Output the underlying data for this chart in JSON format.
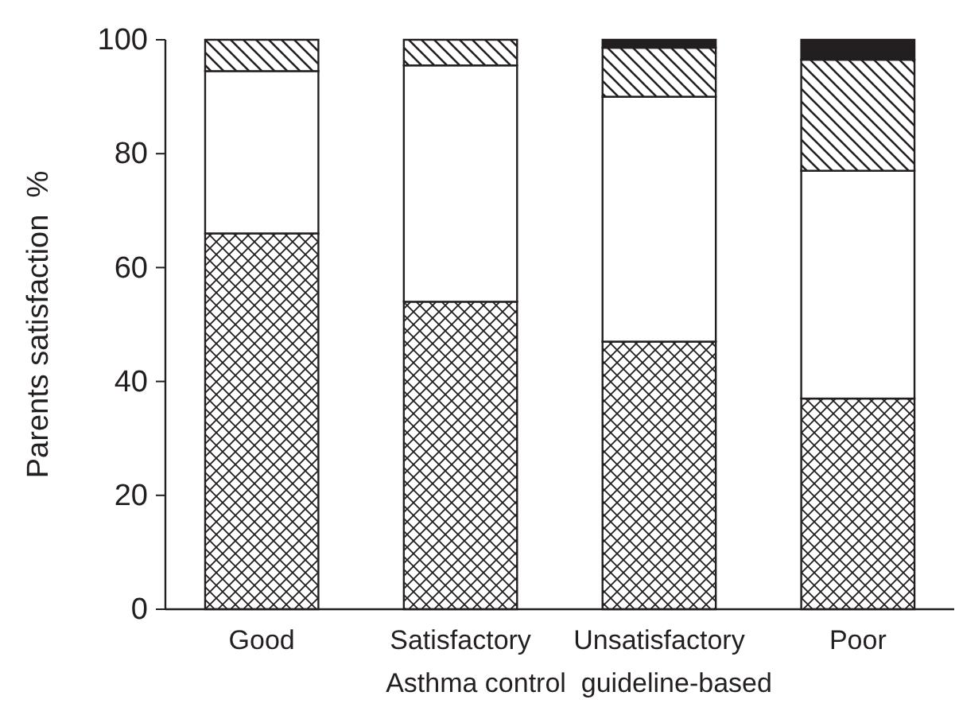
{
  "chart_data": {
    "type": "bar",
    "stacked": true,
    "xlabel": "Asthma control  guideline-based",
    "ylabel": "Parents satisfaction  %",
    "categories": [
      "Good",
      "Satisfactory",
      "Unsatisfactory",
      "Poor"
    ],
    "series": [
      {
        "color": "#231f20",
        "values": [
          66,
          54,
          47,
          37
        ]
      },
      {
        "color": "#ffffff",
        "values": [
          28.5,
          41.5,
          43,
          40
        ]
      },
      {
        "color": "#231f20",
        "values": [
          5.5,
          4.5,
          8.6,
          19.5
        ]
      },
      {
        "color": "#231f20",
        "values": [
          0,
          0,
          1.4,
          3.5
        ]
      }
    ],
    "ylim": [
      0,
      100
    ],
    "yticks": [
      0,
      20,
      40,
      60,
      80,
      100
    ]
  }
}
